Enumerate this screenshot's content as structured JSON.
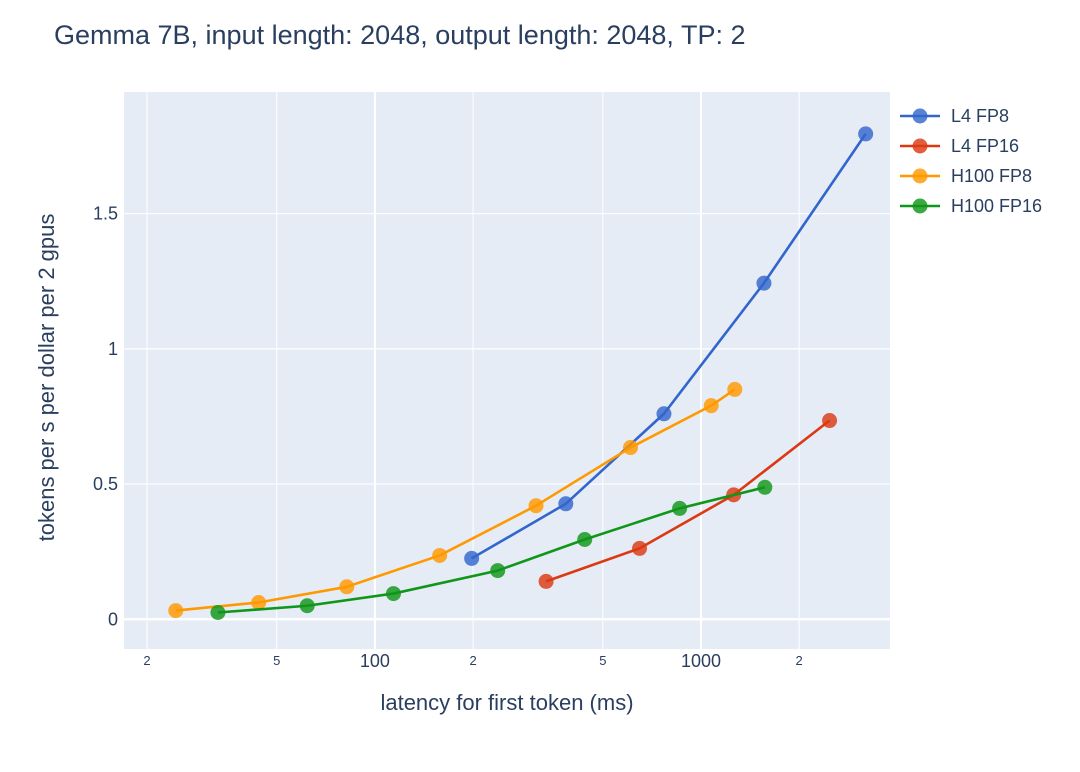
{
  "chart_data": {
    "type": "line",
    "title": "Gemma 7B, input length: 2048, output length: 2048, TP: 2",
    "xlabel": "latency for first token (ms)",
    "ylabel": "tokens per s per dollar per 2 gpus",
    "x_scale": "log",
    "xlim": [
      17,
      3800
    ],
    "ylim": [
      -0.11,
      1.95
    ],
    "grid": true,
    "legend_position": "top-right",
    "background": "#e5ecf6",
    "x_ticks": [
      {
        "value": 20,
        "label": "2",
        "minor": true
      },
      {
        "value": 50,
        "label": "5",
        "minor": true
      },
      {
        "value": 100,
        "label": "100",
        "minor": false
      },
      {
        "value": 200,
        "label": "2",
        "minor": true
      },
      {
        "value": 500,
        "label": "5",
        "minor": true
      },
      {
        "value": 1000,
        "label": "1000",
        "minor": false
      },
      {
        "value": 2000,
        "label": "2",
        "minor": true
      }
    ],
    "y_ticks": [
      {
        "value": 0,
        "label": "0"
      },
      {
        "value": 0.5,
        "label": "0.5"
      },
      {
        "value": 1,
        "label": "1"
      },
      {
        "value": 1.5,
        "label": "1.5"
      }
    ],
    "series": [
      {
        "name": "L4 FP8",
        "color": "#3366cc",
        "x": [
          198,
          385,
          770,
          1560,
          3200
        ],
        "y": [
          0.225,
          0.427,
          0.76,
          1.243,
          1.795
        ]
      },
      {
        "name": "L4 FP16",
        "color": "#dc3912",
        "x": [
          335,
          648,
          1260,
          2480
        ],
        "y": [
          0.14,
          0.262,
          0.46,
          0.735
        ]
      },
      {
        "name": "H100 FP8",
        "color": "#ff9900",
        "x": [
          24.5,
          44,
          82,
          158,
          312,
          608,
          1075,
          1270
        ],
        "y": [
          0.032,
          0.062,
          0.12,
          0.236,
          0.42,
          0.635,
          0.79,
          0.85
        ]
      },
      {
        "name": "H100 FP16",
        "color": "#109618",
        "x": [
          33,
          62,
          114,
          238,
          440,
          860,
          1570
        ],
        "y": [
          0.025,
          0.05,
          0.095,
          0.18,
          0.295,
          0.41,
          0.488
        ]
      }
    ]
  }
}
